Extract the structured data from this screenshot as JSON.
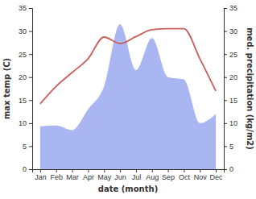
{
  "chart_data": {
    "type": "line",
    "x_label": "date (month)",
    "y_label": "max temp (C)",
    "y2_label": "med. precipitation (kg/m2)",
    "categories": [
      "Jan",
      "Feb",
      "Mar",
      "Apr",
      "May",
      "Jun",
      "Jul",
      "Aug",
      "Sep",
      "Oct",
      "Nov",
      "Dec"
    ],
    "series": [
      {
        "type": "area",
        "axis": "y2",
        "color": "#aab6f1",
        "values": [
          9.3,
          9.5,
          8.5,
          13,
          18,
          31.5,
          21.5,
          28.5,
          20,
          19.5,
          10,
          12
        ]
      },
      {
        "type": "line",
        "color": "#cd5c5c",
        "values": [
          14.2,
          18,
          21,
          24,
          28.7,
          27.3,
          28.8,
          30.3,
          30.5,
          30.5,
          24,
          17
        ]
      }
    ],
    "ylim": [
      0,
      35
    ],
    "yticks": [
      0,
      5,
      10,
      15,
      20,
      25,
      30,
      35
    ],
    "y2lim": [
      0,
      35
    ],
    "y2ticks": [
      0,
      5,
      10,
      15,
      20,
      25,
      30,
      35
    ],
    "grid": false
  }
}
